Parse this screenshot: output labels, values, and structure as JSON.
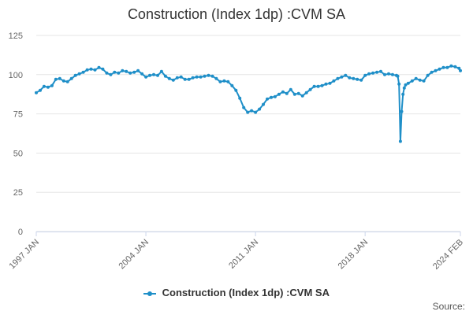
{
  "title": "Construction (Index 1dp) :CVM SA",
  "source_label": "Source:",
  "colors": {
    "series": "#1f8fc8",
    "grid": "#e6e6e6",
    "axis": "#ccd6eb",
    "text": "#666666"
  },
  "chart_data": {
    "type": "line",
    "title": "Construction (Index 1dp) :CVM SA",
    "xlabel": "",
    "ylabel": "",
    "ylim": [
      0,
      125
    ],
    "yticks": [
      "0",
      "25",
      "50",
      "75",
      "100",
      "125"
    ],
    "xtick_labels": [
      "1997 JAN",
      "2004 JAN",
      "2011 JAN",
      "2018 JAN",
      "2024 FEB"
    ],
    "grid": true,
    "legend": "bottom",
    "series": [
      {
        "name": "Construction (Index 1dp) :CVM SA",
        "points": [
          [
            "1997 JAN",
            88.5
          ],
          [
            "1997 APR",
            90.0
          ],
          [
            "1997 JUL",
            92.5
          ],
          [
            "1997 OCT",
            92.0
          ],
          [
            "1998 JAN",
            93.0
          ],
          [
            "1998 APR",
            97.0
          ],
          [
            "1998 JUL",
            97.5
          ],
          [
            "1998 OCT",
            96.0
          ],
          [
            "1999 JAN",
            95.5
          ],
          [
            "1999 APR",
            97.5
          ],
          [
            "1999 JUL",
            99.5
          ],
          [
            "1999 OCT",
            100.5
          ],
          [
            "2000 JAN",
            101.5
          ],
          [
            "2000 APR",
            103.0
          ],
          [
            "2000 JUL",
            103.5
          ],
          [
            "2000 OCT",
            103.0
          ],
          [
            "2001 JAN",
            104.5
          ],
          [
            "2001 APR",
            103.5
          ],
          [
            "2001 JUL",
            101.0
          ],
          [
            "2001 OCT",
            100.0
          ],
          [
            "2002 JAN",
            101.5
          ],
          [
            "2002 APR",
            101.0
          ],
          [
            "2002 JUL",
            102.5
          ],
          [
            "2002 OCT",
            102.0
          ],
          [
            "2003 JAN",
            101.0
          ],
          [
            "2003 APR",
            101.5
          ],
          [
            "2003 JUL",
            102.5
          ],
          [
            "2003 OCT",
            100.5
          ],
          [
            "2004 JAN",
            98.5
          ],
          [
            "2004 APR",
            99.5
          ],
          [
            "2004 JUL",
            100.0
          ],
          [
            "2004 OCT",
            99.5
          ],
          [
            "2005 JAN",
            102.0
          ],
          [
            "2005 APR",
            99.0
          ],
          [
            "2005 JUL",
            97.5
          ],
          [
            "2005 OCT",
            96.5
          ],
          [
            "2006 JAN",
            98.0
          ],
          [
            "2006 APR",
            98.5
          ],
          [
            "2006 JUL",
            97.0
          ],
          [
            "2006 OCT",
            97.0
          ],
          [
            "2007 JAN",
            98.0
          ],
          [
            "2007 APR",
            98.5
          ],
          [
            "2007 JUL",
            98.5
          ],
          [
            "2007 OCT",
            99.0
          ],
          [
            "2008 JAN",
            99.5
          ],
          [
            "2008 APR",
            99.0
          ],
          [
            "2008 JUL",
            97.5
          ],
          [
            "2008 OCT",
            95.5
          ],
          [
            "2009 JAN",
            96.0
          ],
          [
            "2009 APR",
            95.5
          ],
          [
            "2009 JUL",
            93.0
          ],
          [
            "2009 OCT",
            90.0
          ],
          [
            "2010 JAN",
            85.0
          ],
          [
            "2010 APR",
            79.0
          ],
          [
            "2010 JUL",
            76.0
          ],
          [
            "2010 OCT",
            77.0
          ],
          [
            "2011 JAN",
            76.0
          ],
          [
            "2011 APR",
            78.0
          ],
          [
            "2011 JUL",
            81.0
          ],
          [
            "2011 OCT",
            84.5
          ],
          [
            "2012 JAN",
            85.5
          ],
          [
            "2012 APR",
            86.0
          ],
          [
            "2012 JUL",
            87.5
          ],
          [
            "2012 OCT",
            89.0
          ],
          [
            "2013 JAN",
            88.0
          ],
          [
            "2013 APR",
            90.5
          ],
          [
            "2013 JUL",
            87.5
          ],
          [
            "2013 OCT",
            88.0
          ],
          [
            "2014 JAN",
            86.5
          ],
          [
            "2014 APR",
            88.5
          ],
          [
            "2014 JUL",
            90.5
          ],
          [
            "2014 OCT",
            92.5
          ],
          [
            "2015 JAN",
            92.5
          ],
          [
            "2015 APR",
            93.0
          ],
          [
            "2015 JUL",
            94.0
          ],
          [
            "2015 OCT",
            94.5
          ],
          [
            "2016 JAN",
            96.0
          ],
          [
            "2016 APR",
            97.5
          ],
          [
            "2016 JUL",
            98.5
          ],
          [
            "2016 OCT",
            99.5
          ],
          [
            "2017 JAN",
            98.0
          ],
          [
            "2017 APR",
            97.5
          ],
          [
            "2017 JUL",
            97.0
          ],
          [
            "2017 OCT",
            96.5
          ],
          [
            "2018 JAN",
            99.5
          ],
          [
            "2018 APR",
            100.5
          ],
          [
            "2018 JUL",
            101.0
          ],
          [
            "2018 OCT",
            101.5
          ],
          [
            "2019 JAN",
            102.0
          ],
          [
            "2019 APR",
            100.0
          ],
          [
            "2019 JUL",
            100.5
          ],
          [
            "2019 OCT",
            100.0
          ],
          [
            "2020 JAN",
            99.5
          ],
          [
            "2020 FEB",
            99.0
          ],
          [
            "2020 MAR",
            94.0
          ],
          [
            "2020 APR",
            57.5
          ],
          [
            "2020 MAY",
            76.5
          ],
          [
            "2020 JUN",
            87.5
          ],
          [
            "2020 JUL",
            91.5
          ],
          [
            "2020 AUG",
            93.5
          ],
          [
            "2020 OCT",
            94.5
          ],
          [
            "2021 JAN",
            96.0
          ],
          [
            "2021 APR",
            97.5
          ],
          [
            "2021 JUL",
            96.5
          ],
          [
            "2021 OCT",
            96.0
          ],
          [
            "2022 JAN",
            99.5
          ],
          [
            "2022 APR",
            101.5
          ],
          [
            "2022 JUL",
            102.5
          ],
          [
            "2022 OCT",
            103.5
          ],
          [
            "2023 JAN",
            104.5
          ],
          [
            "2023 APR",
            104.5
          ],
          [
            "2023 JUL",
            105.5
          ],
          [
            "2023 OCT",
            105.0
          ],
          [
            "2024 JAN",
            104.0
          ],
          [
            "2024 FEB",
            102.5
          ]
        ]
      }
    ]
  }
}
